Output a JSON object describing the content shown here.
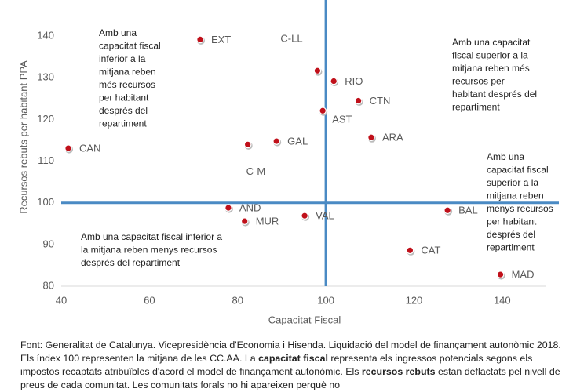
{
  "chart_data": {
    "type": "scatter",
    "x_label": "Capacitat Fiscal",
    "y_label": "Recursos rebuts per habitant PPA",
    "labels": [
      "EXT",
      "C-LL",
      "RIO",
      "CTN",
      "AST",
      "ARA",
      "CAN",
      "C-M",
      "GAL",
      "AND",
      "MUR",
      "VAL",
      "BAL",
      "CAT",
      "MAD"
    ],
    "x": [
      71.5,
      98.1,
      101.8,
      107.4,
      99.3,
      110.3,
      41.6,
      82.3,
      88.8,
      77.9,
      81.6,
      95.2,
      127.6,
      119.1,
      139.6
    ],
    "y": [
      139.2,
      131.7,
      129.2,
      124.5,
      122.1,
      115.7,
      113.1,
      114.0,
      114.8,
      98.8,
      95.6,
      96.9,
      98.2,
      88.6,
      82.8
    ],
    "color": "#c0101a",
    "xlim": [
      40,
      150
    ],
    "xticks": [
      40,
      60,
      80,
      100,
      120,
      140
    ],
    "ylim": [
      80,
      150
    ],
    "yticks": [
      80,
      90,
      100,
      110,
      120,
      130,
      140
    ],
    "reference_lines": {
      "x": 100,
      "y": 100,
      "color": "#4a8ac4"
    },
    "annotations": [
      [
        "Amb una",
        "capacitat fiscal",
        "inferior a la",
        "mitjana reben",
        "més recursos",
        "per habitant",
        "després del",
        "repartiment"
      ],
      [
        "Amb una capacitat",
        "fiscal superior a la",
        "mitjana reben més",
        "recursos per",
        "habitant després del",
        "repartiment"
      ],
      [
        "Amb una",
        "capacitat fiscal",
        "superior a la",
        "mitjana reben",
        "menys recursos",
        "per habitant",
        "després del",
        "repartiment"
      ],
      [
        "Amb una capacitat fiscal inferior a",
        "la mitjana reben menys recursos",
        "després del repartiment"
      ]
    ]
  },
  "footnote": [
    "Font: Generalitat de Catalunya. Vicepresidència d'Economia i Hisenda. Liquidació del model de finançament autonòmic 2018. Els índex 100 representen la mitjana de les CC.AA. La ",
    "capacitat fiscal",
    " representa els ingressos potencials segons els impostos recaptats atribuïbles d'acord el model de finançament autonòmic. Els ",
    "recursos rebuts",
    " estan deflactats pel nivell de preus de cada comunitat. Les comunitats forals no hi apareixen perquè no"
  ]
}
